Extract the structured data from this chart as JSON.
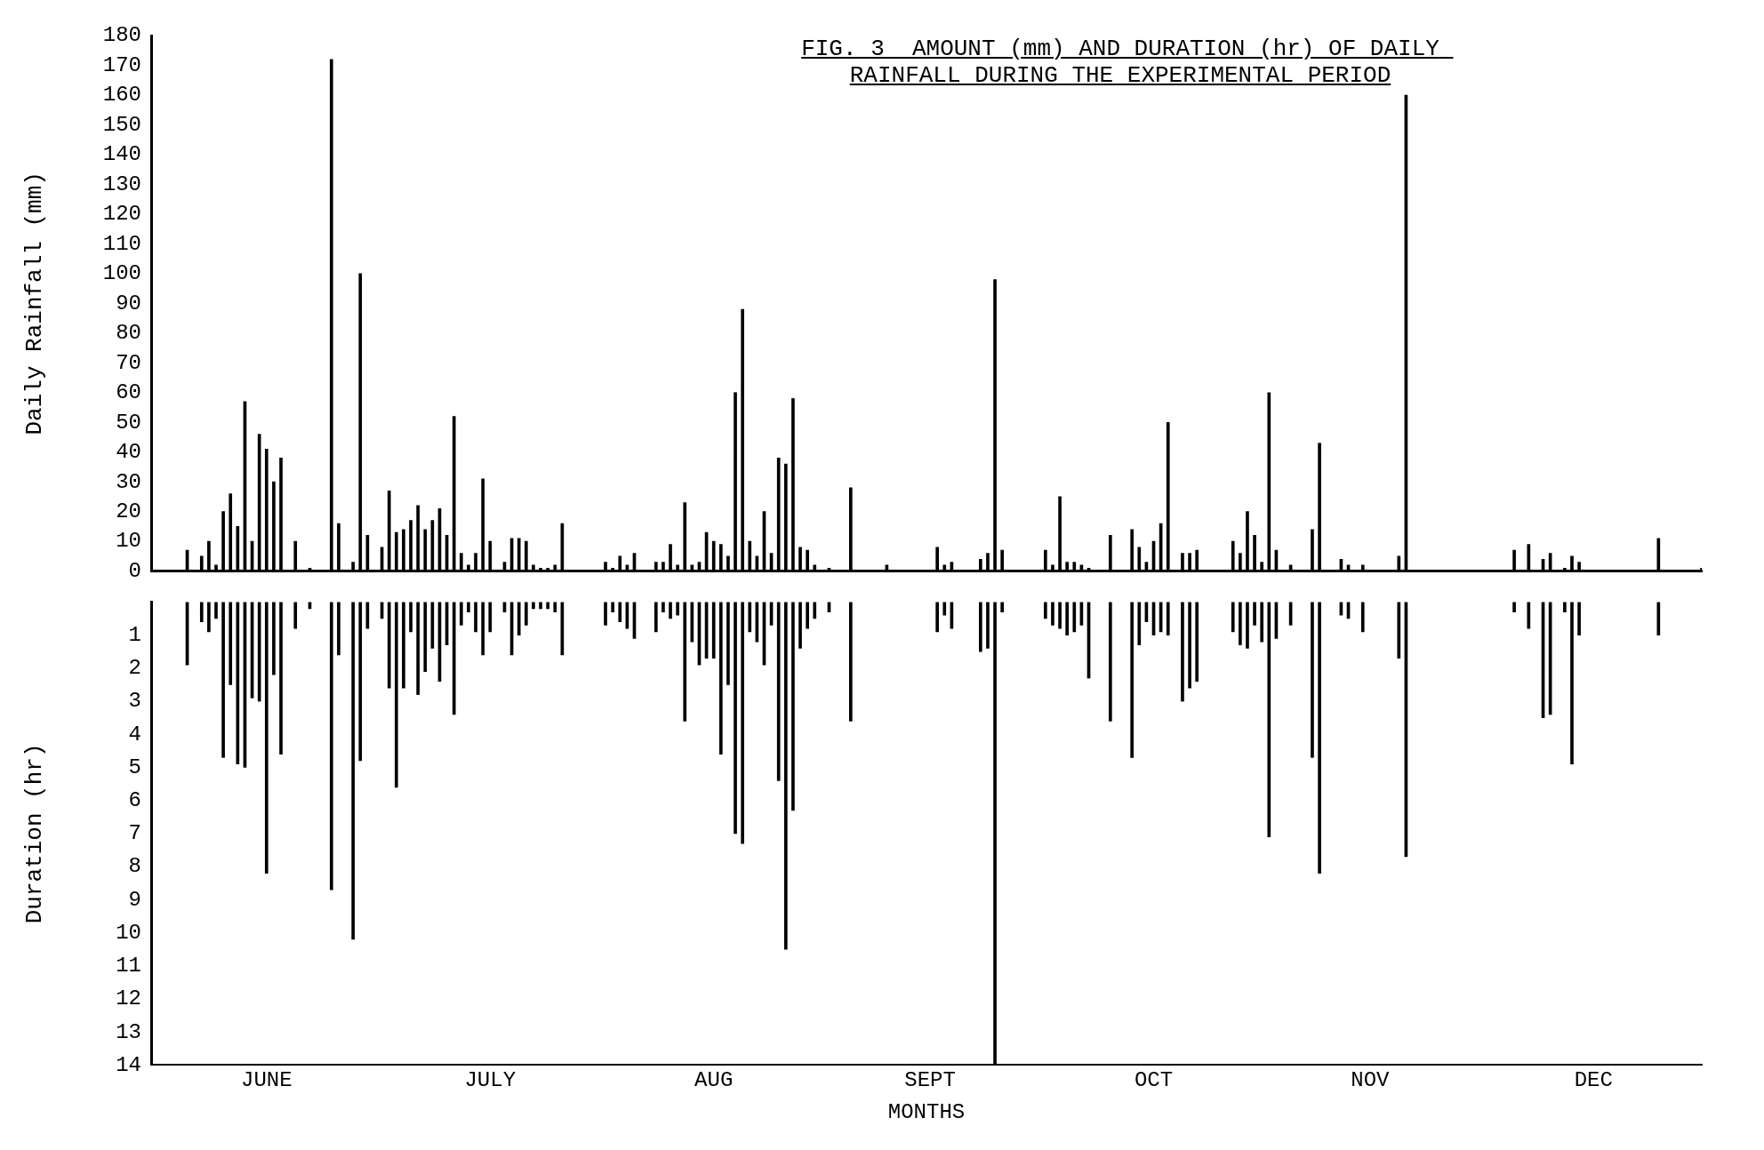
{
  "chart_data": [
    {
      "type": "bar",
      "title": "FIG. 3  AMOUNT (mm) AND DURATION (hr) OF DAILY RAINFALL DURING THE EXPERIMENTAL PERIOD",
      "ylabel": "Daily Rainfall (mm)",
      "x": [
        "--06-04",
        "--06-06",
        "--06-07",
        "--06-08",
        "--06-09",
        "--06-10",
        "--06-11",
        "--06-12",
        "--06-13",
        "--06-14",
        "--06-15",
        "--06-16",
        "--06-17",
        "--06-19",
        "--06-21",
        "--06-24",
        "--06-25",
        "--06-27",
        "--06-28",
        "--06-29",
        "--07-01",
        "--07-02",
        "--07-03",
        "--07-04",
        "--07-05",
        "--07-06",
        "--07-07",
        "--07-08",
        "--07-09",
        "--07-10",
        "--07-11",
        "--07-12",
        "--07-13",
        "--07-14",
        "--07-15",
        "--07-16",
        "--07-18",
        "--07-19",
        "--07-20",
        "--07-21",
        "--07-22",
        "--07-23",
        "--07-24",
        "--07-25",
        "--07-26",
        "--08-01",
        "--08-02",
        "--08-03",
        "--08-04",
        "--08-05",
        "--08-08",
        "--08-09",
        "--08-10",
        "--08-11",
        "--08-12",
        "--08-13",
        "--08-14",
        "--08-15",
        "--08-16",
        "--08-17",
        "--08-18",
        "--08-19",
        "--08-20",
        "--08-21",
        "--08-22",
        "--08-23",
        "--08-24",
        "--08-25",
        "--08-26",
        "--08-27",
        "--08-28",
        "--08-29",
        "--08-30",
        "--09-01",
        "--09-04",
        "--09-09",
        "--09-16",
        "--09-17",
        "--09-18",
        "--09-22",
        "--09-23",
        "--09-24",
        "--09-25",
        "--10-01",
        "--10-02",
        "--10-03",
        "--10-04",
        "--10-05",
        "--10-06",
        "--10-07",
        "--10-10",
        "--10-13",
        "--10-14",
        "--10-15",
        "--10-16",
        "--10-17",
        "--10-18",
        "--10-20",
        "--10-21",
        "--10-22",
        "--10-27",
        "--10-28",
        "--10-29",
        "--10-30",
        "--10-31",
        "--11-01",
        "--11-02",
        "--11-04",
        "--11-07",
        "--11-08",
        "--11-11",
        "--11-12",
        "--11-14",
        "--11-19",
        "--11-20",
        "--12-05",
        "--12-07",
        "--12-09",
        "--12-10",
        "--12-12",
        "--12-13",
        "--12-14",
        "--12-25",
        "--12-31"
      ],
      "values": [
        7,
        5,
        10,
        2,
        20,
        26,
        15,
        57,
        10,
        46,
        41,
        30,
        38,
        10,
        1,
        172,
        16,
        3,
        100,
        12,
        8,
        27,
        13,
        14,
        17,
        22,
        14,
        17,
        21,
        12,
        52,
        6,
        2,
        6,
        31,
        10,
        3,
        11,
        11,
        10,
        2,
        1,
        1,
        2,
        16,
        3,
        1,
        5,
        2,
        6,
        3,
        3,
        9,
        2,
        23,
        2,
        3,
        13,
        10,
        9,
        5,
        60,
        88,
        10,
        5,
        20,
        6,
        38,
        36,
        58,
        8,
        7,
        2,
        1,
        28,
        2,
        8,
        2,
        3,
        4,
        6,
        98,
        7,
        7,
        2,
        25,
        3,
        3,
        2,
        1,
        12,
        14,
        8,
        3,
        10,
        16,
        50,
        6,
        6,
        7,
        10,
        6,
        20,
        12,
        3,
        60,
        7,
        2,
        14,
        43,
        4,
        2,
        2,
        5,
        160,
        7,
        9,
        4,
        6,
        1,
        5,
        3,
        11,
        1
      ],
      "color": "#000000",
      "xlim": [
        "--05-30",
        "--12-31"
      ],
      "ylim": [
        0,
        180
      ],
      "yticks": [
        0,
        10,
        20,
        30,
        40,
        50,
        60,
        70,
        80,
        90,
        100,
        110,
        120,
        130,
        140,
        150,
        160,
        170,
        180
      ],
      "tick_labels": "y",
      "grid": false,
      "legend": false
    },
    {
      "type": "bar",
      "xlabel": "MONTHS",
      "ylabel": "Duration (hr)",
      "x": [
        "--06-04",
        "--06-06",
        "--06-07",
        "--06-08",
        "--06-09",
        "--06-10",
        "--06-11",
        "--06-12",
        "--06-13",
        "--06-14",
        "--06-15",
        "--06-16",
        "--06-17",
        "--06-19",
        "--06-21",
        "--06-24",
        "--06-25",
        "--06-27",
        "--06-28",
        "--06-29",
        "--07-01",
        "--07-02",
        "--07-03",
        "--07-04",
        "--07-05",
        "--07-06",
        "--07-07",
        "--07-08",
        "--07-09",
        "--07-10",
        "--07-11",
        "--07-12",
        "--07-13",
        "--07-14",
        "--07-15",
        "--07-16",
        "--07-18",
        "--07-19",
        "--07-20",
        "--07-21",
        "--07-22",
        "--07-23",
        "--07-24",
        "--07-25",
        "--07-26",
        "--08-01",
        "--08-02",
        "--08-03",
        "--08-04",
        "--08-05",
        "--08-08",
        "--08-09",
        "--08-10",
        "--08-11",
        "--08-12",
        "--08-13",
        "--08-14",
        "--08-15",
        "--08-16",
        "--08-17",
        "--08-18",
        "--08-19",
        "--08-20",
        "--08-21",
        "--08-22",
        "--08-23",
        "--08-24",
        "--08-25",
        "--08-26",
        "--08-27",
        "--08-28",
        "--08-29",
        "--08-30",
        "--09-01",
        "--09-04",
        "--09-16",
        "--09-17",
        "--09-18",
        "--09-22",
        "--09-23",
        "--09-24",
        "--09-25",
        "--10-01",
        "--10-02",
        "--10-03",
        "--10-04",
        "--10-05",
        "--10-06",
        "--10-07",
        "--10-10",
        "--10-13",
        "--10-14",
        "--10-15",
        "--10-16",
        "--10-17",
        "--10-18",
        "--10-20",
        "--10-21",
        "--10-22",
        "--10-27",
        "--10-28",
        "--10-29",
        "--10-30",
        "--10-31",
        "--11-01",
        "--11-02",
        "--11-04",
        "--11-07",
        "--11-08",
        "--11-11",
        "--11-12",
        "--11-14",
        "--11-19",
        "--11-20",
        "--12-05",
        "--12-07",
        "--12-09",
        "--12-10",
        "--12-12",
        "--12-13",
        "--12-14",
        "--12-25"
      ],
      "values": [
        1.9,
        0.6,
        0.9,
        0.5,
        4.7,
        2.5,
        4.9,
        5.0,
        2.9,
        3.0,
        8.2,
        2.2,
        4.6,
        0.8,
        0.2,
        8.7,
        1.6,
        10.2,
        4.8,
        0.8,
        0.5,
        2.6,
        5.6,
        2.6,
        0.9,
        2.8,
        2.1,
        1.4,
        2.4,
        1.3,
        3.4,
        0.7,
        0.3,
        0.9,
        1.6,
        0.9,
        0.3,
        1.6,
        1.0,
        0.7,
        0.2,
        0.2,
        0.2,
        0.3,
        1.6,
        0.7,
        0.3,
        0.6,
        0.8,
        1.1,
        0.9,
        0.3,
        0.5,
        0.4,
        3.6,
        1.2,
        1.9,
        1.7,
        1.7,
        4.6,
        2.5,
        7.0,
        7.3,
        0.9,
        1.2,
        1.9,
        0.7,
        5.4,
        10.5,
        6.3,
        1.4,
        0.8,
        0.5,
        0.3,
        3.6,
        0.9,
        0.4,
        0.8,
        1.5,
        1.4,
        14,
        0.3,
        0.5,
        0.7,
        0.8,
        1.0,
        0.9,
        0.7,
        2.3,
        3.6,
        4.7,
        1.3,
        0.6,
        1.0,
        0.9,
        1.0,
        3.0,
        2.6,
        2.4,
        0.9,
        1.3,
        1.4,
        0.7,
        1.2,
        7.1,
        1.1,
        0.7,
        4.7,
        8.2,
        0.4,
        0.5,
        0.9,
        1.7,
        7.7,
        0.3,
        0.8,
        3.5,
        3.4,
        0.3,
        4.9,
        1.0,
        1.0
      ],
      "color": "#000000",
      "xlim": [
        "--05-30",
        "--12-31"
      ],
      "xticks": [
        {
          "value": "--06-15",
          "label": "JUNE"
        },
        {
          "value": "--07-16",
          "label": "JULY"
        },
        {
          "value": "--08-16",
          "label": "AUG"
        },
        {
          "value": "--09-15",
          "label": "SEPT"
        },
        {
          "value": "--10-16",
          "label": "OCT"
        },
        {
          "value": "--11-15",
          "label": "NOV"
        },
        {
          "value": "--12-16",
          "label": "DEC"
        }
      ],
      "ylim": [
        14,
        0
      ],
      "yticks": [
        1,
        2,
        3,
        4,
        5,
        6,
        7,
        8,
        9,
        10,
        11,
        12,
        13,
        14
      ],
      "grid": false,
      "legend": false
    }
  ]
}
